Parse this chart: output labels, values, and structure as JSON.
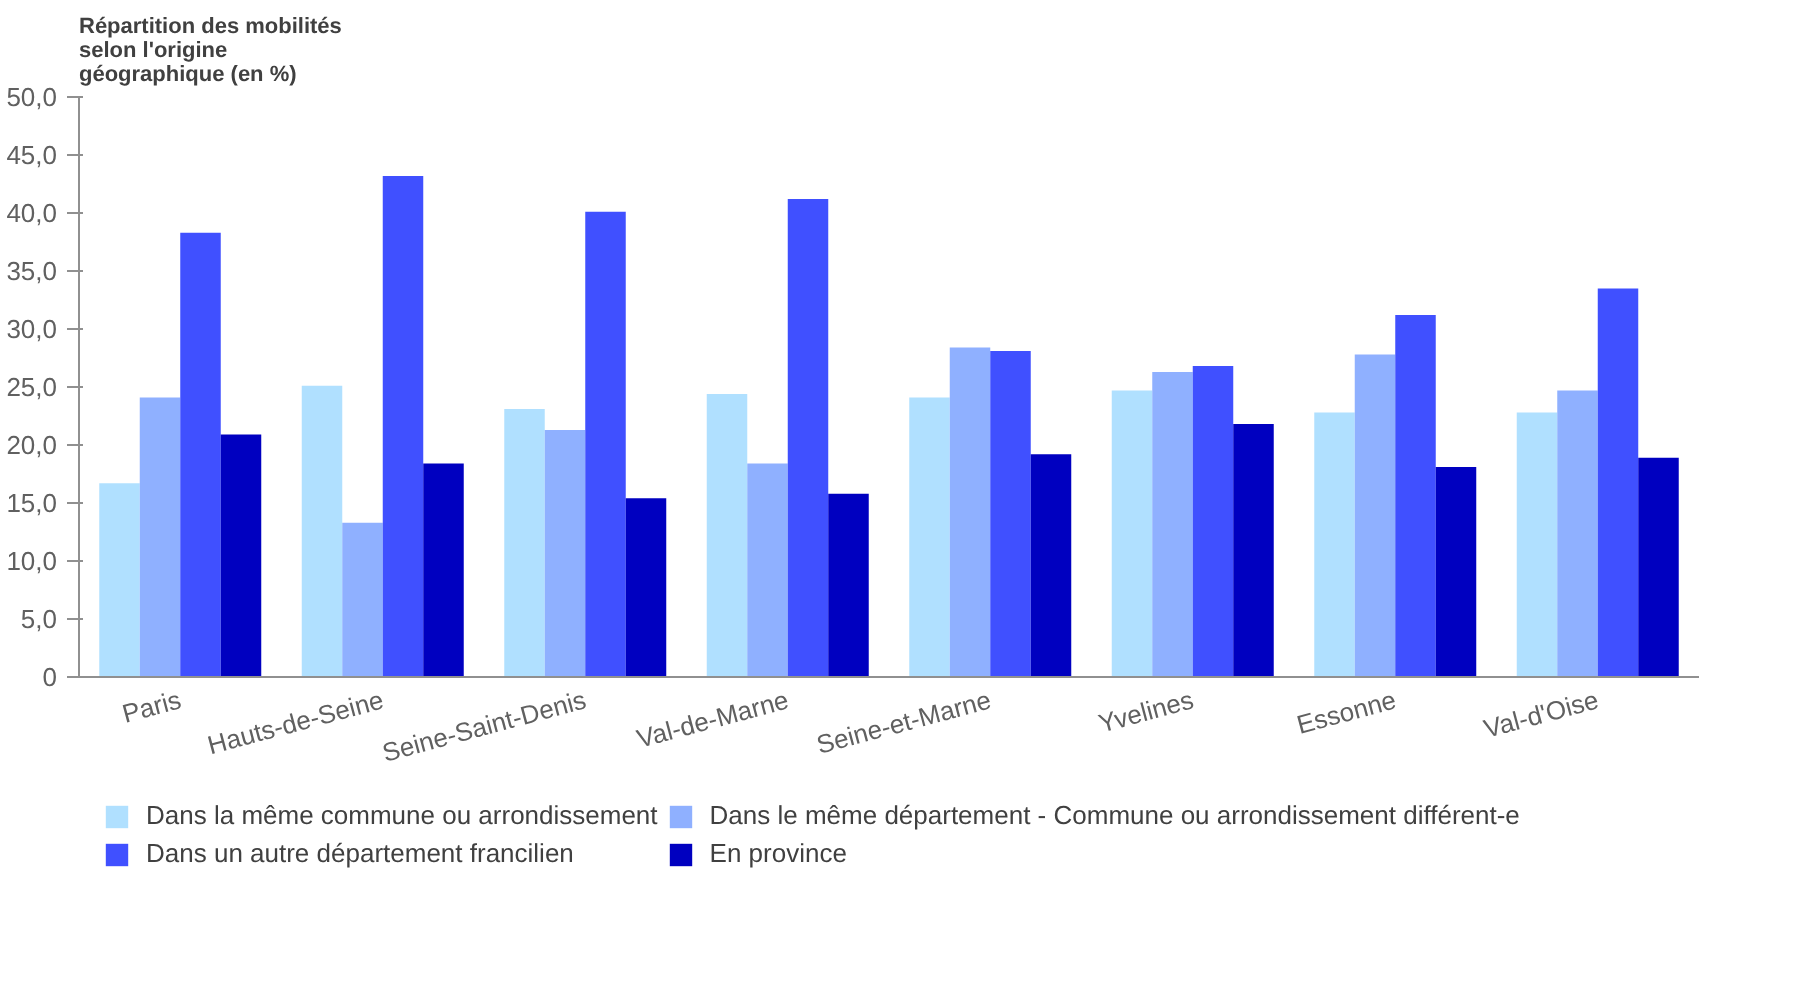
{
  "chart_data": {
    "type": "bar",
    "title": "Répartition des mobilités selon l'origine géographique (en %)",
    "categories": [
      "Paris",
      "Hauts-de-Seine",
      "Seine-Saint-Denis",
      "Val-de-Marne",
      "Seine-et-Marne",
      "Yvelines",
      "Essonne",
      "Val-d'Oise"
    ],
    "series": [
      {
        "name": "Dans la même commune ou arrondissement",
        "color": "#b0e0ff",
        "values": [
          16.7,
          25.1,
          23.1,
          24.4,
          24.1,
          24.7,
          22.8,
          22.8
        ]
      },
      {
        "name": "Dans le même département - Commune ou arrondissement différent-e",
        "color": "#8fb0ff",
        "values": [
          24.1,
          13.3,
          21.3,
          18.4,
          28.4,
          26.3,
          27.8,
          24.7
        ]
      },
      {
        "name": "Dans un autre département francilien",
        "color": "#4050ff",
        "values": [
          38.3,
          43.2,
          40.1,
          41.2,
          28.1,
          26.8,
          31.2,
          33.5
        ]
      },
      {
        "name": "En province",
        "color": "#0000c0",
        "values": [
          20.9,
          18.4,
          15.4,
          15.8,
          19.2,
          21.8,
          18.1,
          18.9
        ]
      }
    ],
    "ylim": [
      0,
      50
    ],
    "yticks": [
      {
        "value": 0,
        "label": "0"
      },
      {
        "value": 5,
        "label": "5,0"
      },
      {
        "value": 10,
        "label": "10,0"
      },
      {
        "value": 15,
        "label": "15,0"
      },
      {
        "value": 20,
        "label": "20,0"
      },
      {
        "value": 25,
        "label": "25,0"
      },
      {
        "value": 30,
        "label": "30,0"
      },
      {
        "value": 35,
        "label": "35,0"
      },
      {
        "value": 40,
        "label": "40,0"
      },
      {
        "value": 45,
        "label": "45,0"
      },
      {
        "value": 50,
        "label": "50,0"
      }
    ],
    "grid": false,
    "legend": "bottom"
  }
}
